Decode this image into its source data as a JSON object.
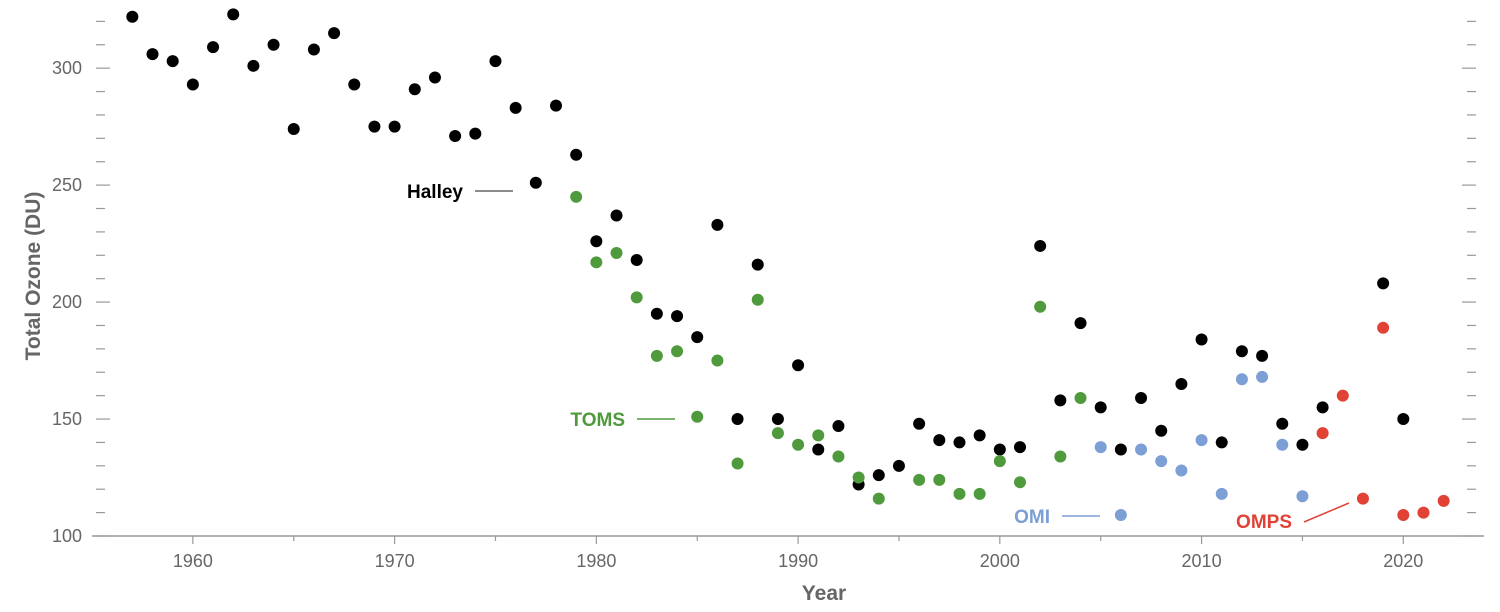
{
  "chart_data": {
    "type": "scatter",
    "title": "",
    "xlabel": "Year",
    "ylabel": "Total Ozone (DU)",
    "xlim": [
      1955,
      2024
    ],
    "ylim": [
      100,
      327
    ],
    "xticks": [
      1960,
      1970,
      1980,
      1990,
      2000,
      2010,
      2020
    ],
    "yticks": [
      100,
      150,
      200,
      250,
      300
    ],
    "grid": false,
    "legend": "inline labels",
    "series": [
      {
        "name": "Halley",
        "color": "#000000",
        "points": [
          [
            1957,
            322
          ],
          [
            1958,
            306
          ],
          [
            1959,
            303
          ],
          [
            1960,
            293
          ],
          [
            1961,
            309
          ],
          [
            1962,
            323
          ],
          [
            1963,
            301
          ],
          [
            1964,
            310
          ],
          [
            1965,
            274
          ],
          [
            1966,
            308
          ],
          [
            1967,
            315
          ],
          [
            1968,
            293
          ],
          [
            1969,
            275
          ],
          [
            1970,
            275
          ],
          [
            1971,
            291
          ],
          [
            1972,
            296
          ],
          [
            1973,
            271
          ],
          [
            1974,
            272
          ],
          [
            1975,
            303
          ],
          [
            1976,
            283
          ],
          [
            1977,
            251
          ],
          [
            1978,
            284
          ],
          [
            1979,
            263
          ],
          [
            1980,
            226
          ],
          [
            1981,
            237
          ],
          [
            1982,
            218
          ],
          [
            1983,
            195
          ],
          [
            1984,
            194
          ],
          [
            1985,
            185
          ],
          [
            1986,
            233
          ],
          [
            1987,
            150
          ],
          [
            1988,
            216
          ],
          [
            1989,
            150
          ],
          [
            1990,
            173
          ],
          [
            1991,
            137
          ],
          [
            1992,
            147
          ],
          [
            1993,
            122
          ],
          [
            1994,
            126
          ],
          [
            1995,
            130
          ],
          [
            1996,
            148
          ],
          [
            1997,
            141
          ],
          [
            1998,
            140
          ],
          [
            1999,
            143
          ],
          [
            2000,
            137
          ],
          [
            2001,
            138
          ],
          [
            2002,
            224
          ],
          [
            2003,
            158
          ],
          [
            2004,
            191
          ],
          [
            2005,
            155
          ],
          [
            2006,
            137
          ],
          [
            2007,
            159
          ],
          [
            2008,
            145
          ],
          [
            2009,
            165
          ],
          [
            2010,
            184
          ],
          [
            2011,
            140
          ],
          [
            2012,
            179
          ],
          [
            2013,
            177
          ],
          [
            2014,
            148
          ],
          [
            2015,
            139
          ],
          [
            2016,
            155
          ],
          [
            2019,
            208
          ],
          [
            2020,
            150
          ]
        ]
      },
      {
        "name": "TOMS",
        "color": "#4f9a3c",
        "points": [
          [
            1979,
            245
          ],
          [
            1980,
            217
          ],
          [
            1981,
            221
          ],
          [
            1982,
            202
          ],
          [
            1983,
            177
          ],
          [
            1984,
            179
          ],
          [
            1985,
            151
          ],
          [
            1986,
            175
          ],
          [
            1987,
            131
          ],
          [
            1988,
            201
          ],
          [
            1989,
            144
          ],
          [
            1990,
            139
          ],
          [
            1991,
            143
          ],
          [
            1992,
            134
          ],
          [
            1993,
            125
          ],
          [
            1994,
            116
          ],
          [
            1996,
            124
          ],
          [
            1997,
            124
          ],
          [
            1998,
            118
          ],
          [
            1999,
            118
          ],
          [
            2000,
            132
          ],
          [
            2001,
            123
          ],
          [
            2002,
            198
          ],
          [
            2003,
            134
          ],
          [
            2004,
            159
          ]
        ]
      },
      {
        "name": "OMI",
        "color": "#7c9fd6",
        "points": [
          [
            2005,
            138
          ],
          [
            2006,
            109
          ],
          [
            2007,
            137
          ],
          [
            2008,
            132
          ],
          [
            2009,
            128
          ],
          [
            2010,
            141
          ],
          [
            2011,
            118
          ],
          [
            2012,
            167
          ],
          [
            2013,
            168
          ],
          [
            2014,
            139
          ],
          [
            2015,
            117
          ]
        ]
      },
      {
        "name": "OMPS",
        "color": "#e04236",
        "points": [
          [
            2016,
            144
          ],
          [
            2017,
            160
          ],
          [
            2018,
            116
          ],
          [
            2019,
            189
          ],
          [
            2020,
            109
          ],
          [
            2021,
            110
          ],
          [
            2022,
            115
          ]
        ]
      }
    ]
  }
}
